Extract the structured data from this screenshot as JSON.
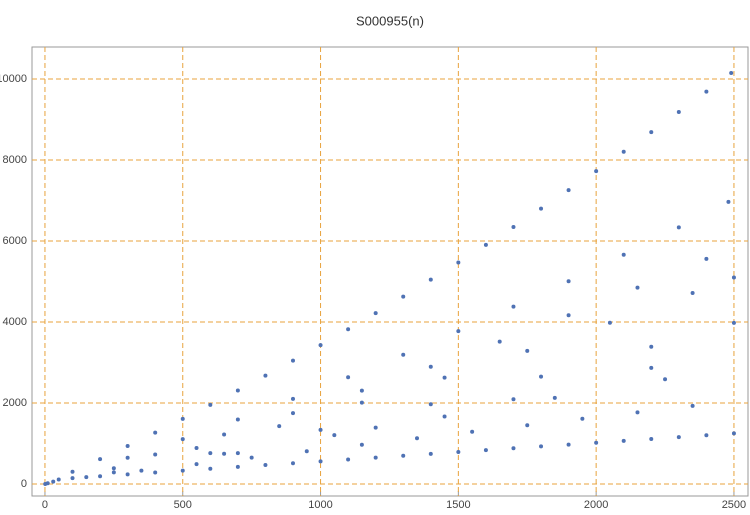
{
  "chart_data": {
    "type": "scatter",
    "title": "S000955(n)",
    "x": [
      1,
      10,
      30,
      50,
      100,
      200,
      300,
      400,
      500,
      600,
      700,
      800,
      900,
      1000,
      1100,
      1200,
      1300,
      1400,
      1500,
      1600,
      1700,
      1800,
      1900,
      2000,
      2100,
      2200,
      2300,
      2400,
      2490,
      300,
      500,
      700,
      900,
      1100,
      1300,
      1500,
      1700,
      1900,
      2100,
      2300,
      2480,
      400,
      650,
      900,
      1150,
      1400,
      1650,
      1900,
      2150,
      2400,
      250,
      550,
      850,
      1150,
      1450,
      1750,
      2050,
      2350,
      2500,
      600,
      1000,
      1400,
      1800,
      2200,
      2500,
      700,
      1200,
      1700,
      2200,
      100,
      200,
      300,
      400,
      500,
      600,
      700,
      800,
      900,
      1000,
      1100,
      1200,
      1300,
      1400,
      1500,
      1600,
      1700,
      1800,
      1900,
      2000,
      2100,
      2200,
      2300,
      2400,
      2500,
      150,
      350,
      550,
      750,
      950,
      1150,
      1350,
      1550,
      1750,
      1950,
      2150,
      2350,
      250,
      650,
      1050,
      1450,
      1850,
      2250
    ],
    "y": [
      0,
      20,
      60,
      110,
      304,
      616,
      938,
      1268,
      1607,
      1954,
      2310,
      2675,
      3048,
      3430,
      3821,
      4220,
      4628,
      5045,
      5470,
      5904,
      6346,
      6798,
      7257,
      7726,
      8204,
      8689,
      9184,
      9687,
      10148,
      647,
      1109,
      1594,
      2103,
      2636,
      3193,
      3774,
      4379,
      5007,
      5661,
      6337,
      6966,
      728,
      1223,
      1750,
      2307,
      2896,
      3515,
      4166,
      4848,
      5560,
      388,
      890,
      1430,
      2010,
      2628,
      3286,
      3982,
      4717,
      5100,
      762,
      1338,
      1968,
      2651,
      3389,
      3978,
      762,
      1393,
      2094,
      2867,
      146,
      192,
      238,
      284,
      330,
      376,
      422,
      468,
      514,
      560,
      606,
      652,
      698,
      744,
      790,
      836,
      882,
      928,
      974,
      1020,
      1066,
      1112,
      1158,
      1204,
      1250,
      170,
      330,
      490,
      650,
      810,
      970,
      1130,
      1290,
      1450,
      1610,
      1770,
      1930,
      288,
      748,
      1208,
      1668,
      2128,
      2588
    ],
    "color": "#4f72b4",
    "grid_color": "#e8a33d",
    "xlim": [
      -47,
      2551
    ],
    "ylim": [
      -296,
      10790
    ],
    "xticks": [
      0,
      500,
      1000,
      1500,
      2000,
      2500
    ],
    "yticks": [
      0,
      2000,
      4000,
      6000,
      8000,
      10000
    ],
    "grid": true
  }
}
